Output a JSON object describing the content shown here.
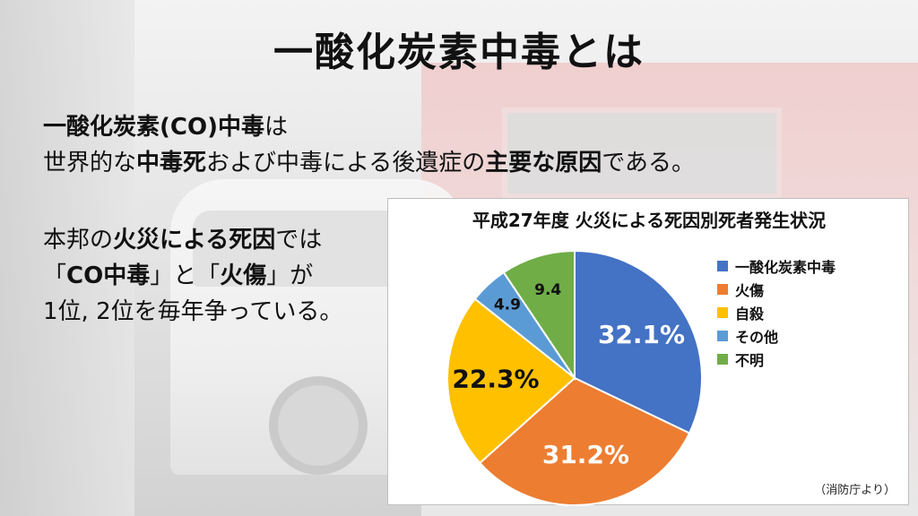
{
  "title": "一酸化炭素中毒とは",
  "para1": {
    "line1": [
      {
        "t": "一酸化炭素(CO)中毒",
        "b": true
      },
      {
        "t": "は",
        "b": false
      }
    ],
    "line2": [
      {
        "t": "世界的な",
        "b": false
      },
      {
        "t": "中毒死",
        "b": true
      },
      {
        "t": "および中毒による後遺症の",
        "b": false
      },
      {
        "t": "主要な原因",
        "b": true
      },
      {
        "t": "である。",
        "b": false
      }
    ]
  },
  "para2": {
    "line1": [
      {
        "t": "本邦の",
        "b": false
      },
      {
        "t": "火災による死因",
        "b": true
      },
      {
        "t": "では",
        "b": false
      }
    ],
    "line2": [
      {
        "t": "「",
        "b": false
      },
      {
        "t": "CO中毒",
        "b": true
      },
      {
        "t": "」と「",
        "b": false
      },
      {
        "t": "火傷",
        "b": true
      },
      {
        "t": "」が",
        "b": false
      }
    ],
    "line3": [
      {
        "t": "1位, 2位を毎年争っている。",
        "b": false
      }
    ]
  },
  "chart_data": {
    "type": "pie",
    "title": "平成27年度 火災による死因別死者発生状況",
    "slices": [
      {
        "label": "一酸化炭素中毒",
        "value": 32.1,
        "display": "32.1%",
        "color": "#4472C4",
        "text_color": "#ffffff"
      },
      {
        "label": "火傷",
        "value": 31.2,
        "display": "31.2%",
        "color": "#ED7D31",
        "text_color": "#ffffff"
      },
      {
        "label": "自殺",
        "value": 22.3,
        "display": "22.3%",
        "color": "#FFC000",
        "text_color": "#111111"
      },
      {
        "label": "その他",
        "value": 4.9,
        "display": "4.9",
        "color": "#5B9BD5",
        "text_color": "#111111"
      },
      {
        "label": "不明",
        "value": 9.4,
        "display": "9.4",
        "color": "#70AD47",
        "text_color": "#111111"
      }
    ],
    "start_angle_deg": 0,
    "direction": "clockwise",
    "legend_position": "right"
  },
  "source": "（消防庁より）"
}
